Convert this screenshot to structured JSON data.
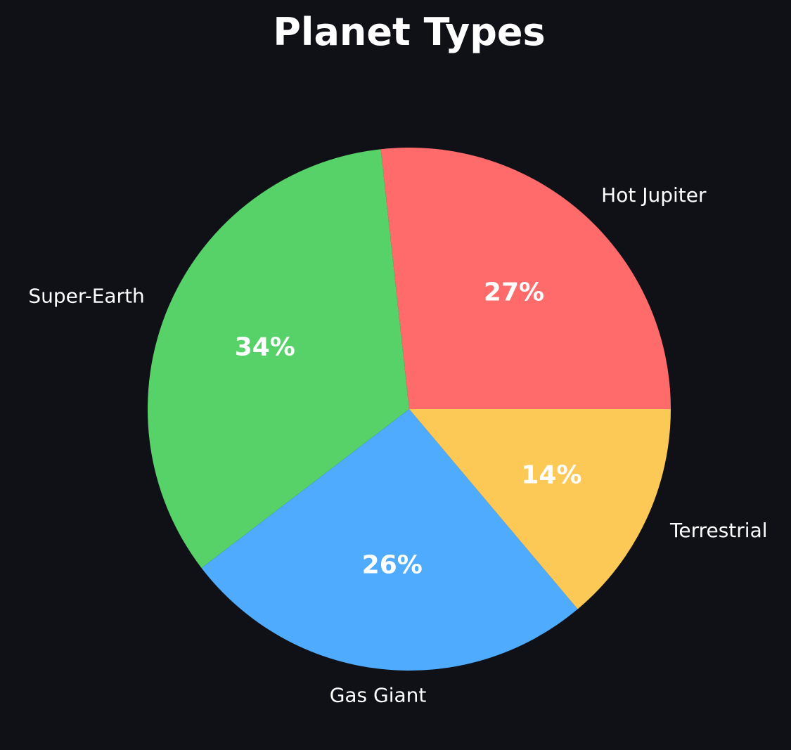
{
  "chart_data": {
    "type": "pie",
    "title": "Planet Types",
    "categories": [
      "Hot Jupiter",
      "Super-Earth",
      "Gas Giant",
      "Terrestrial"
    ],
    "values": [
      27,
      34,
      26,
      14
    ],
    "value_labels": [
      "27%",
      "34%",
      "26%",
      "14%"
    ],
    "colors": [
      "#ff6b6b",
      "#57d268",
      "#4fabfd",
      "#fcc856"
    ],
    "start_angle_deg": 0,
    "direction": "counterclockwise"
  },
  "colors": {
    "background": "#0f1117",
    "text": "#ffffff"
  }
}
